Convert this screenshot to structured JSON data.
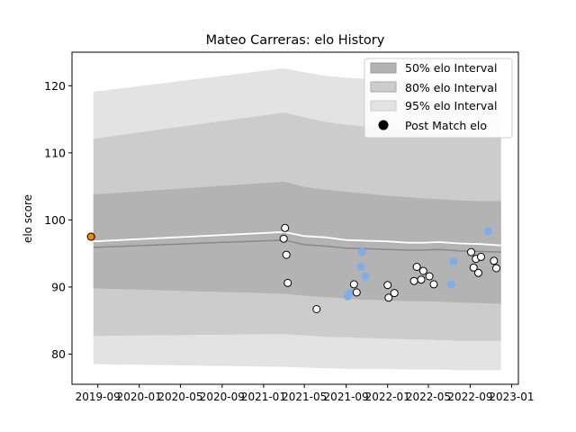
{
  "chart_data": {
    "type": "line",
    "title": "Mateo Carreras: elo History",
    "xlabel": "",
    "ylabel": "elo score",
    "xlim": [
      "2019-06-17",
      "2023-01-21"
    ],
    "ylim": [
      75.5,
      125.0
    ],
    "x_ticks": [
      "2019-09",
      "2020-01",
      "2020-05",
      "2020-09",
      "2021-01",
      "2021-05",
      "2021-09",
      "2022-01",
      "2022-05",
      "2022-09",
      "2023-01"
    ],
    "y_ticks": [
      80,
      90,
      100,
      110,
      120
    ],
    "grid": false,
    "legend": {
      "position": "top-right",
      "entries": [
        "50% elo Interval",
        "80% elo Interval",
        "95% elo Interval",
        "Post Match elo"
      ]
    },
    "colors": {
      "band95": "#e3e3e3",
      "band80": "#cccccc",
      "band50": "#b3b3b3",
      "mean_line": "#ffffff",
      "median_line": "#888888",
      "post_match_point": "#ffffff",
      "highlight_point": "#7eaee6",
      "first_point": "#f08c00"
    },
    "bands": {
      "x": [
        "2019-08-19",
        "2021-03-01",
        "2021-05-01",
        "2021-07-01",
        "2021-09-01",
        "2021-11-01",
        "2022-01-01",
        "2022-03-01",
        "2022-04-15",
        "2022-06-01",
        "2022-08-01",
        "2022-10-01",
        "2022-12-01"
      ],
      "p95_low": [
        78.5,
        78.1,
        78.0,
        77.9,
        77.8,
        77.8,
        77.8,
        77.7,
        77.7,
        77.7,
        77.6,
        77.6,
        77.6
      ],
      "p95_high": [
        119.1,
        122.6,
        122.0,
        121.5,
        121.2,
        121.0,
        120.9,
        120.7,
        120.5,
        120.5,
        120.4,
        120.3,
        120.3
      ],
      "p80_low": [
        82.7,
        83.0,
        82.8,
        82.6,
        82.5,
        82.4,
        82.3,
        82.2,
        82.2,
        82.1,
        82.0,
        82.0,
        82.0
      ],
      "p80_high": [
        112.1,
        116.0,
        115.3,
        114.6,
        114.2,
        113.9,
        113.6,
        113.3,
        113.0,
        112.9,
        112.7,
        112.5,
        112.4
      ],
      "p50_low": [
        89.8,
        89.0,
        88.7,
        88.5,
        88.3,
        88.1,
        88.0,
        87.9,
        87.9,
        87.8,
        87.7,
        87.6,
        87.5
      ],
      "p50_high": [
        103.8,
        105.7,
        104.9,
        104.5,
        104.2,
        103.9,
        103.6,
        103.4,
        103.2,
        103.1,
        102.9,
        102.8,
        102.8
      ]
    },
    "series": [
      {
        "x": [
          "2019-08-19",
          "2021-03-01",
          "2021-05-01",
          "2021-07-01",
          "2021-09-01",
          "2021-11-01",
          "2022-01-01",
          "2022-03-01",
          "2022-04-15",
          "2022-06-01",
          "2022-08-01",
          "2022-10-01",
          "2022-12-01"
        ],
        "values": [
          96.8,
          98.2,
          97.6,
          97.4,
          97.0,
          96.9,
          96.8,
          96.6,
          96.6,
          96.7,
          96.5,
          96.4,
          96.2
        ]
      },
      {
        "x": [
          "2019-08-19",
          "2021-03-01",
          "2021-05-01",
          "2021-07-01",
          "2021-09-01",
          "2021-11-01",
          "2022-01-01",
          "2022-03-01",
          "2022-04-15",
          "2022-06-01",
          "2022-08-01",
          "2022-10-01",
          "2022-12-01"
        ],
        "values": [
          95.9,
          97.0,
          96.3,
          96.1,
          95.8,
          95.7,
          95.6,
          95.5,
          95.5,
          95.6,
          95.4,
          95.3,
          95.2
        ]
      }
    ],
    "points": {
      "name": "Post Match elo",
      "x": [
        "2019-08-12",
        "2021-03-01",
        "2021-03-05",
        "2021-03-09",
        "2021-03-13",
        "2021-06-06",
        "2021-09-24",
        "2021-10-02",
        "2022-01-01",
        "2022-01-04",
        "2022-01-21",
        "2022-03-20",
        "2022-03-28",
        "2022-04-10",
        "2022-04-16",
        "2022-05-04",
        "2022-05-17",
        "2022-09-04",
        "2022-09-11",
        "2022-09-18",
        "2022-09-25",
        "2022-10-03",
        "2022-11-10",
        "2022-11-17"
      ],
      "values": [
        97.5,
        97.2,
        98.8,
        94.8,
        90.6,
        86.7,
        90.4,
        89.2,
        90.3,
        88.4,
        89.1,
        90.9,
        93.0,
        91.1,
        92.4,
        91.6,
        90.4,
        95.2,
        92.9,
        94.2,
        92.1,
        94.5,
        93.9,
        92.8
      ]
    },
    "highlight_points": {
      "x": [
        "2019-08-14",
        "2021-09-06",
        "2021-09-12",
        "2021-10-14",
        "2021-10-18",
        "2021-10-28",
        "2022-07-07",
        "2022-07-14",
        "2022-10-24"
      ],
      "values": [
        97.5,
        88.6,
        89.1,
        93.0,
        95.2,
        91.6,
        90.4,
        93.8,
        98.3
      ]
    }
  }
}
